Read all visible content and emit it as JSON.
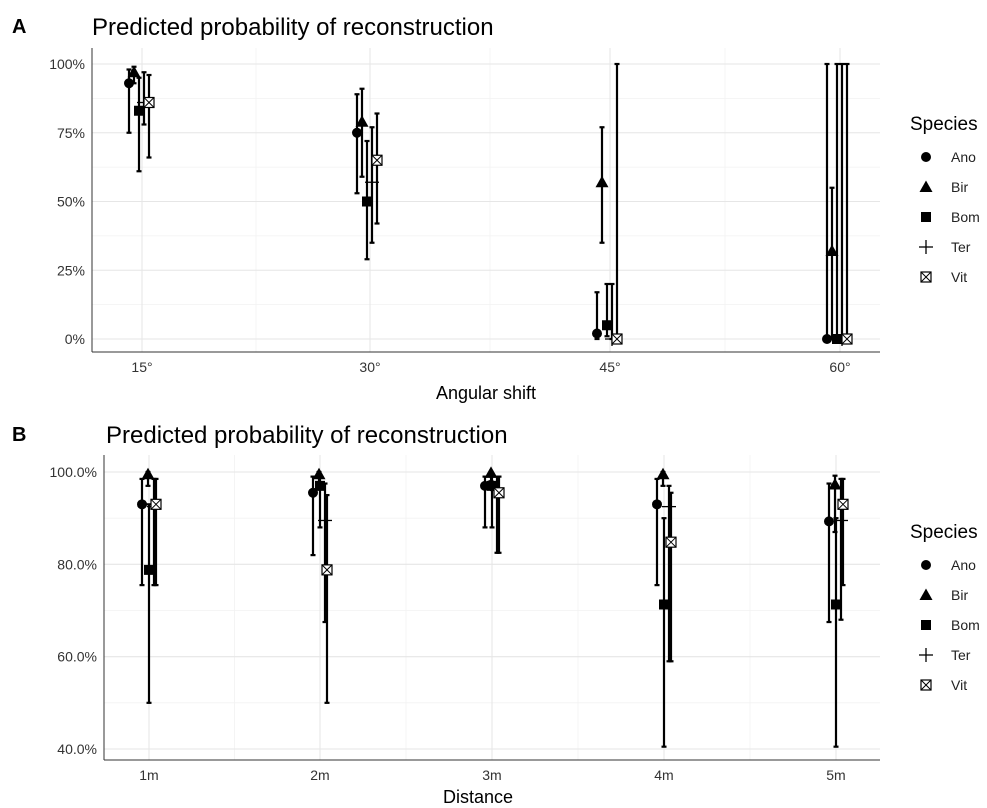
{
  "species_colors": {
    "marker": "#000000",
    "grid": "#e6e6e6",
    "background": "#ffffff"
  },
  "chart_data": [
    {
      "panel": "A",
      "type": "scatter",
      "subtype": "point-with-error-bars",
      "title": "Predicted probability of reconstruction",
      "xlabel": "Angular shift",
      "ylabel": "",
      "categories": [
        "15°",
        "30°",
        "45°",
        "60°"
      ],
      "yticks": [
        "0%",
        "25%",
        "50%",
        "75%",
        "100%"
      ],
      "ylim": [
        0,
        1
      ],
      "legend_title": "Species",
      "legend_position": "right",
      "grid": true,
      "series": [
        {
          "name": "Ano",
          "marker": "circle",
          "values": [
            0.93,
            0.75,
            0.02,
            0.0
          ],
          "lower": [
            0.75,
            0.53,
            0.0,
            0.0
          ],
          "upper": [
            0.98,
            0.89,
            0.17,
            1.0
          ]
        },
        {
          "name": "Bir",
          "marker": "triangle",
          "values": [
            0.97,
            0.79,
            0.57,
            0.32
          ],
          "lower": [
            0.93,
            0.59,
            0.35,
            0.0
          ],
          "upper": [
            0.99,
            0.91,
            0.77,
            0.55
          ]
        },
        {
          "name": "Bom",
          "marker": "square",
          "values": [
            0.83,
            0.5,
            0.05,
            0.0
          ],
          "lower": [
            0.61,
            0.29,
            0.01,
            0.0
          ],
          "upper": [
            0.95,
            0.72,
            0.2,
            1.0
          ]
        },
        {
          "name": "Ter",
          "marker": "plus",
          "values": [
            0.86,
            0.57,
            0.0,
            0.0
          ],
          "lower": [
            0.78,
            0.35,
            0.0,
            0.0
          ],
          "upper": [
            0.97,
            0.77,
            0.2,
            1.0
          ]
        },
        {
          "name": "Vit",
          "marker": "boxed-x",
          "values": [
            0.86,
            0.65,
            0.0,
            0.0
          ],
          "lower": [
            0.66,
            0.42,
            0.0,
            0.0
          ],
          "upper": [
            0.96,
            0.82,
            1.0,
            1.0
          ]
        }
      ]
    },
    {
      "panel": "B",
      "type": "scatter",
      "subtype": "point-with-error-bars",
      "title": "Predicted probability of reconstruction",
      "xlabel": "Distance",
      "ylabel": "",
      "categories": [
        "1m",
        "2m",
        "3m",
        "4m",
        "5m"
      ],
      "yticks": [
        "40.0%",
        "60.0%",
        "80.0%",
        "100.0%"
      ],
      "ylim": [
        0.4,
        1.0
      ],
      "legend_title": "Species",
      "legend_position": "right",
      "grid": true,
      "series": [
        {
          "name": "Ano",
          "marker": "circle",
          "values": [
            0.93,
            0.955,
            0.97,
            0.93,
            0.893
          ],
          "lower": [
            0.755,
            0.82,
            0.88,
            0.755,
            0.675
          ],
          "upper": [
            0.985,
            0.99,
            0.99,
            0.985,
            0.975
          ]
        },
        {
          "name": "Bir",
          "marker": "triangle",
          "values": [
            0.995,
            0.995,
            0.998,
            0.995,
            0.973
          ],
          "lower": [
            0.97,
            0.97,
            0.98,
            0.97,
            0.87
          ],
          "upper": [
            1.0,
            1.0,
            1.0,
            1.0,
            0.992
          ]
        },
        {
          "name": "Bom",
          "marker": "square",
          "values": [
            0.788,
            0.97,
            0.97,
            0.713,
            0.713
          ],
          "lower": [
            0.5,
            0.88,
            0.88,
            0.405,
            0.405
          ],
          "upper": [
            0.93,
            0.99,
            0.99,
            0.9,
            0.9
          ]
        },
        {
          "name": "Ter",
          "marker": "plus",
          "values": [
            0.925,
            0.895,
            0.96,
            0.925,
            0.895
          ],
          "lower": [
            0.755,
            0.675,
            0.825,
            0.59,
            0.68
          ],
          "upper": [
            0.985,
            0.975,
            0.99,
            0.97,
            0.985
          ]
        },
        {
          "name": "Vit",
          "marker": "boxed-x",
          "values": [
            0.93,
            0.788,
            0.955,
            0.848,
            0.93
          ],
          "lower": [
            0.755,
            0.5,
            0.825,
            0.59,
            0.755
          ],
          "upper": [
            0.985,
            0.95,
            0.99,
            0.955,
            0.985
          ]
        }
      ]
    }
  ],
  "legend": {
    "title": "Species",
    "entries": [
      {
        "label": "Ano",
        "marker": "circle"
      },
      {
        "label": "Bir",
        "marker": "triangle"
      },
      {
        "label": "Bom",
        "marker": "square"
      },
      {
        "label": "Ter",
        "marker": "plus"
      },
      {
        "label": "Vit",
        "marker": "boxed-x"
      }
    ]
  }
}
